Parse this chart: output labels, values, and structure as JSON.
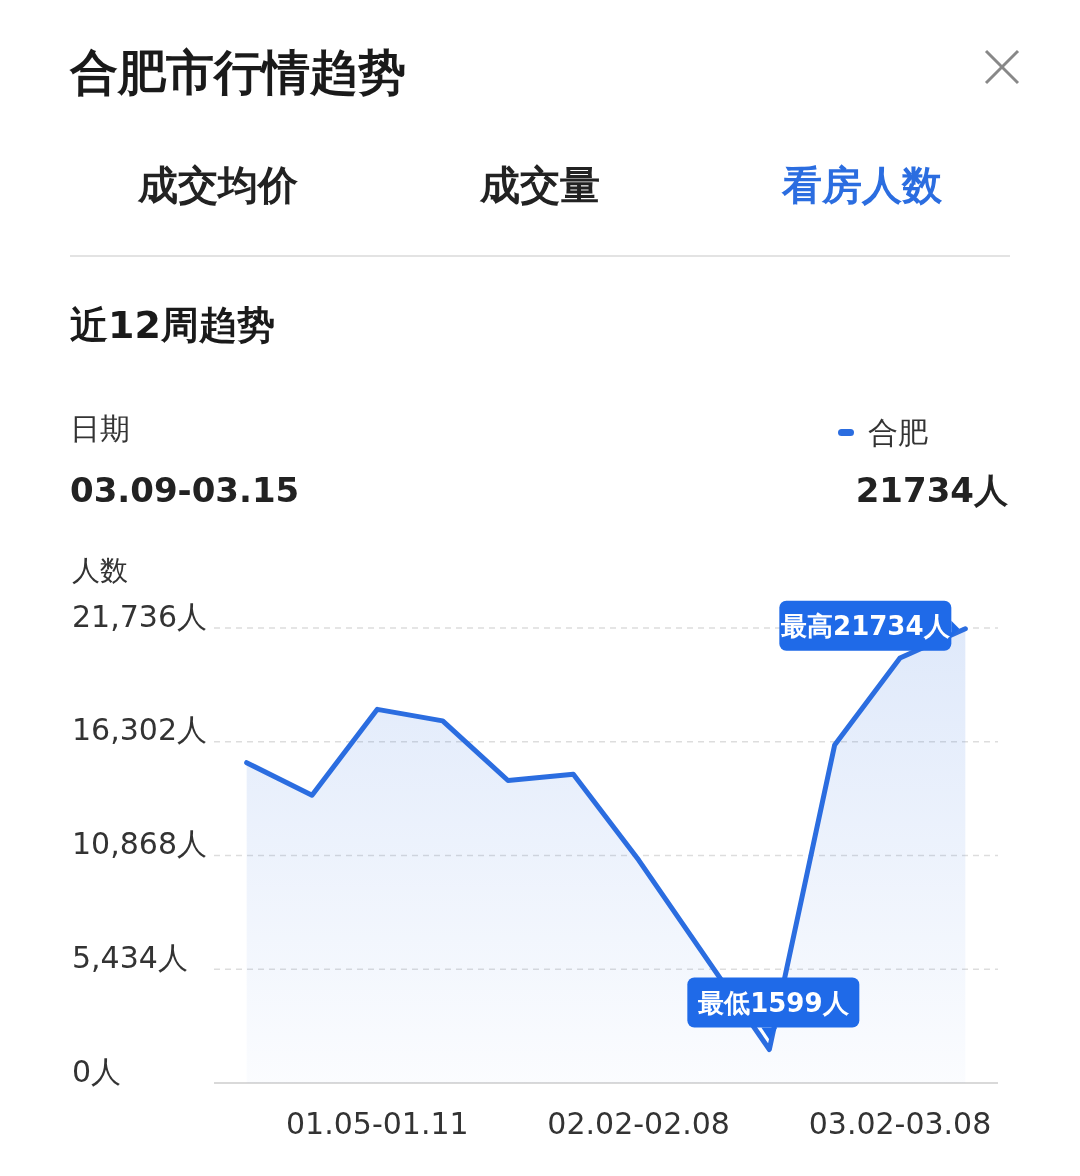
{
  "chart_data": {
    "type": "area",
    "title": "合肥市行情趋势",
    "subtitle": "近12周趋势",
    "ylabel": "人数",
    "categories": [
      null,
      null,
      "01.05-01.11",
      null,
      null,
      null,
      "02.02-02.08",
      null,
      null,
      null,
      "03.02-03.08",
      null
    ],
    "series": [
      {
        "name": "合肥",
        "color": "#2b6de0",
        "values": [
          15300,
          13750,
          17850,
          17300,
          14450,
          14750,
          10650,
          null,
          1600,
          16150,
          20300,
          21700
        ]
      }
    ],
    "ylim": [
      0,
      21736
    ],
    "yticks": [
      {
        "value": 0,
        "label": "0人"
      },
      {
        "value": 5434,
        "label": "5,434人"
      },
      {
        "value": 10868,
        "label": "10,868人"
      },
      {
        "value": 16302,
        "label": "16,302人"
      },
      {
        "value": 21736,
        "label": "21,736人"
      }
    ],
    "grid": "y",
    "legend": "top right",
    "marker": "none",
    "line_style": "solid",
    "annotations": [
      "成交均价",
      "成交量",
      "看房人数",
      "日期",
      "03.09-03.15",
      "21734人",
      "最高21734人",
      "最低1599人"
    ]
  }
}
